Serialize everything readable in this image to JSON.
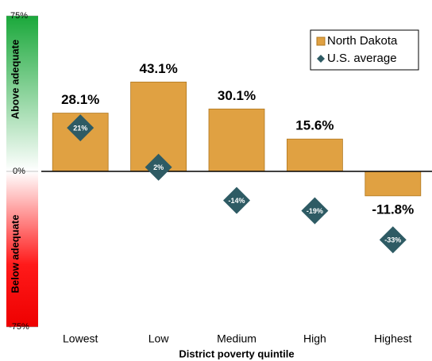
{
  "chart_data": {
    "type": "bar",
    "x_label": "District poverty quintile",
    "annotations": [
      "Above adequate",
      "Below adequate"
    ],
    "categories": [
      "Lowest",
      "Low",
      "Medium",
      "High",
      "Highest"
    ],
    "series": [
      {
        "name": "North Dakota",
        "type": "bar",
        "color": "#e0a142",
        "values": [
          28.1,
          43.1,
          30.1,
          15.6,
          -11.8
        ],
        "value_labels": [
          "28.1%",
          "43.1%",
          "30.1%",
          "15.6%",
          "-11.8%"
        ]
      },
      {
        "name": "U.S. average",
        "type": "diamond",
        "color": "#2e5b64",
        "values": [
          21,
          2,
          -14,
          -19,
          -33
        ],
        "value_labels": [
          "21%",
          "2%",
          "-14%",
          "-19%",
          "-33%"
        ]
      }
    ],
    "ylim": [
      -75,
      75
    ],
    "yticks": [
      {
        "value": -75,
        "label": "-75%"
      },
      {
        "value": 0,
        "label": "0%"
      },
      {
        "value": 75,
        "label": "75%"
      }
    ],
    "legend": "upper right"
  }
}
